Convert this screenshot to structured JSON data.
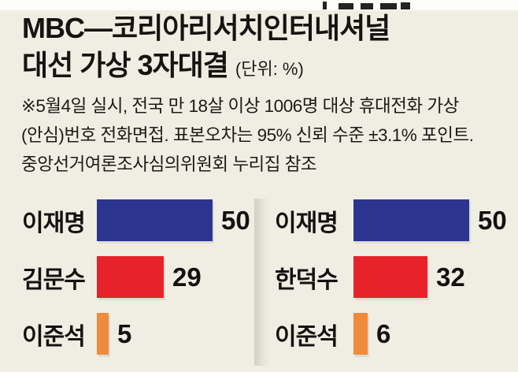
{
  "title": {
    "line1": "MBC—코리아리서치인터내셔널",
    "line2": "대선 가상 3자대결",
    "unit": "(단위: %)"
  },
  "note": {
    "line1": "※5월4일 실시, 전국 만 18살 이상 1006명 대상 휴대전화 가상",
    "line2": "(안심)번호 전화면접. 표본오차는 95% 신뢰 수준 ±3.1% 포인트.",
    "line3": "중앙선거여론조사심의위원회 누리집 참조"
  },
  "chart_data": [
    {
      "type": "bar",
      "orientation": "horizontal",
      "title": "가상 3자대결 1 (이재명-김문수-이준석)",
      "categories": [
        "이재명",
        "김문수",
        "이준석"
      ],
      "values": [
        50,
        29,
        5
      ],
      "bar_colors": [
        "#2b3590",
        "#e8222b",
        "#ee8b3d"
      ],
      "unit": "%",
      "xlim": [
        0,
        50
      ],
      "grid": false,
      "value_labels": "right-of-bar"
    },
    {
      "type": "bar",
      "orientation": "horizontal",
      "title": "가상 3자대결 2 (이재명-한덕수-이준석)",
      "categories": [
        "이재명",
        "한덕수",
        "이준석"
      ],
      "values": [
        50,
        32,
        6
      ],
      "bar_colors": [
        "#2b3590",
        "#e8222b",
        "#ee8b3d"
      ],
      "unit": "%",
      "xlim": [
        0,
        50
      ],
      "grid": false,
      "value_labels": "right-of-bar"
    }
  ],
  "colors": {
    "background": "#f0eee3",
    "party_blue": "#2b3590",
    "party_red": "#e8222b",
    "party_orange": "#ee8b3d",
    "text": "#131210",
    "divider": "#d2d0c4"
  }
}
